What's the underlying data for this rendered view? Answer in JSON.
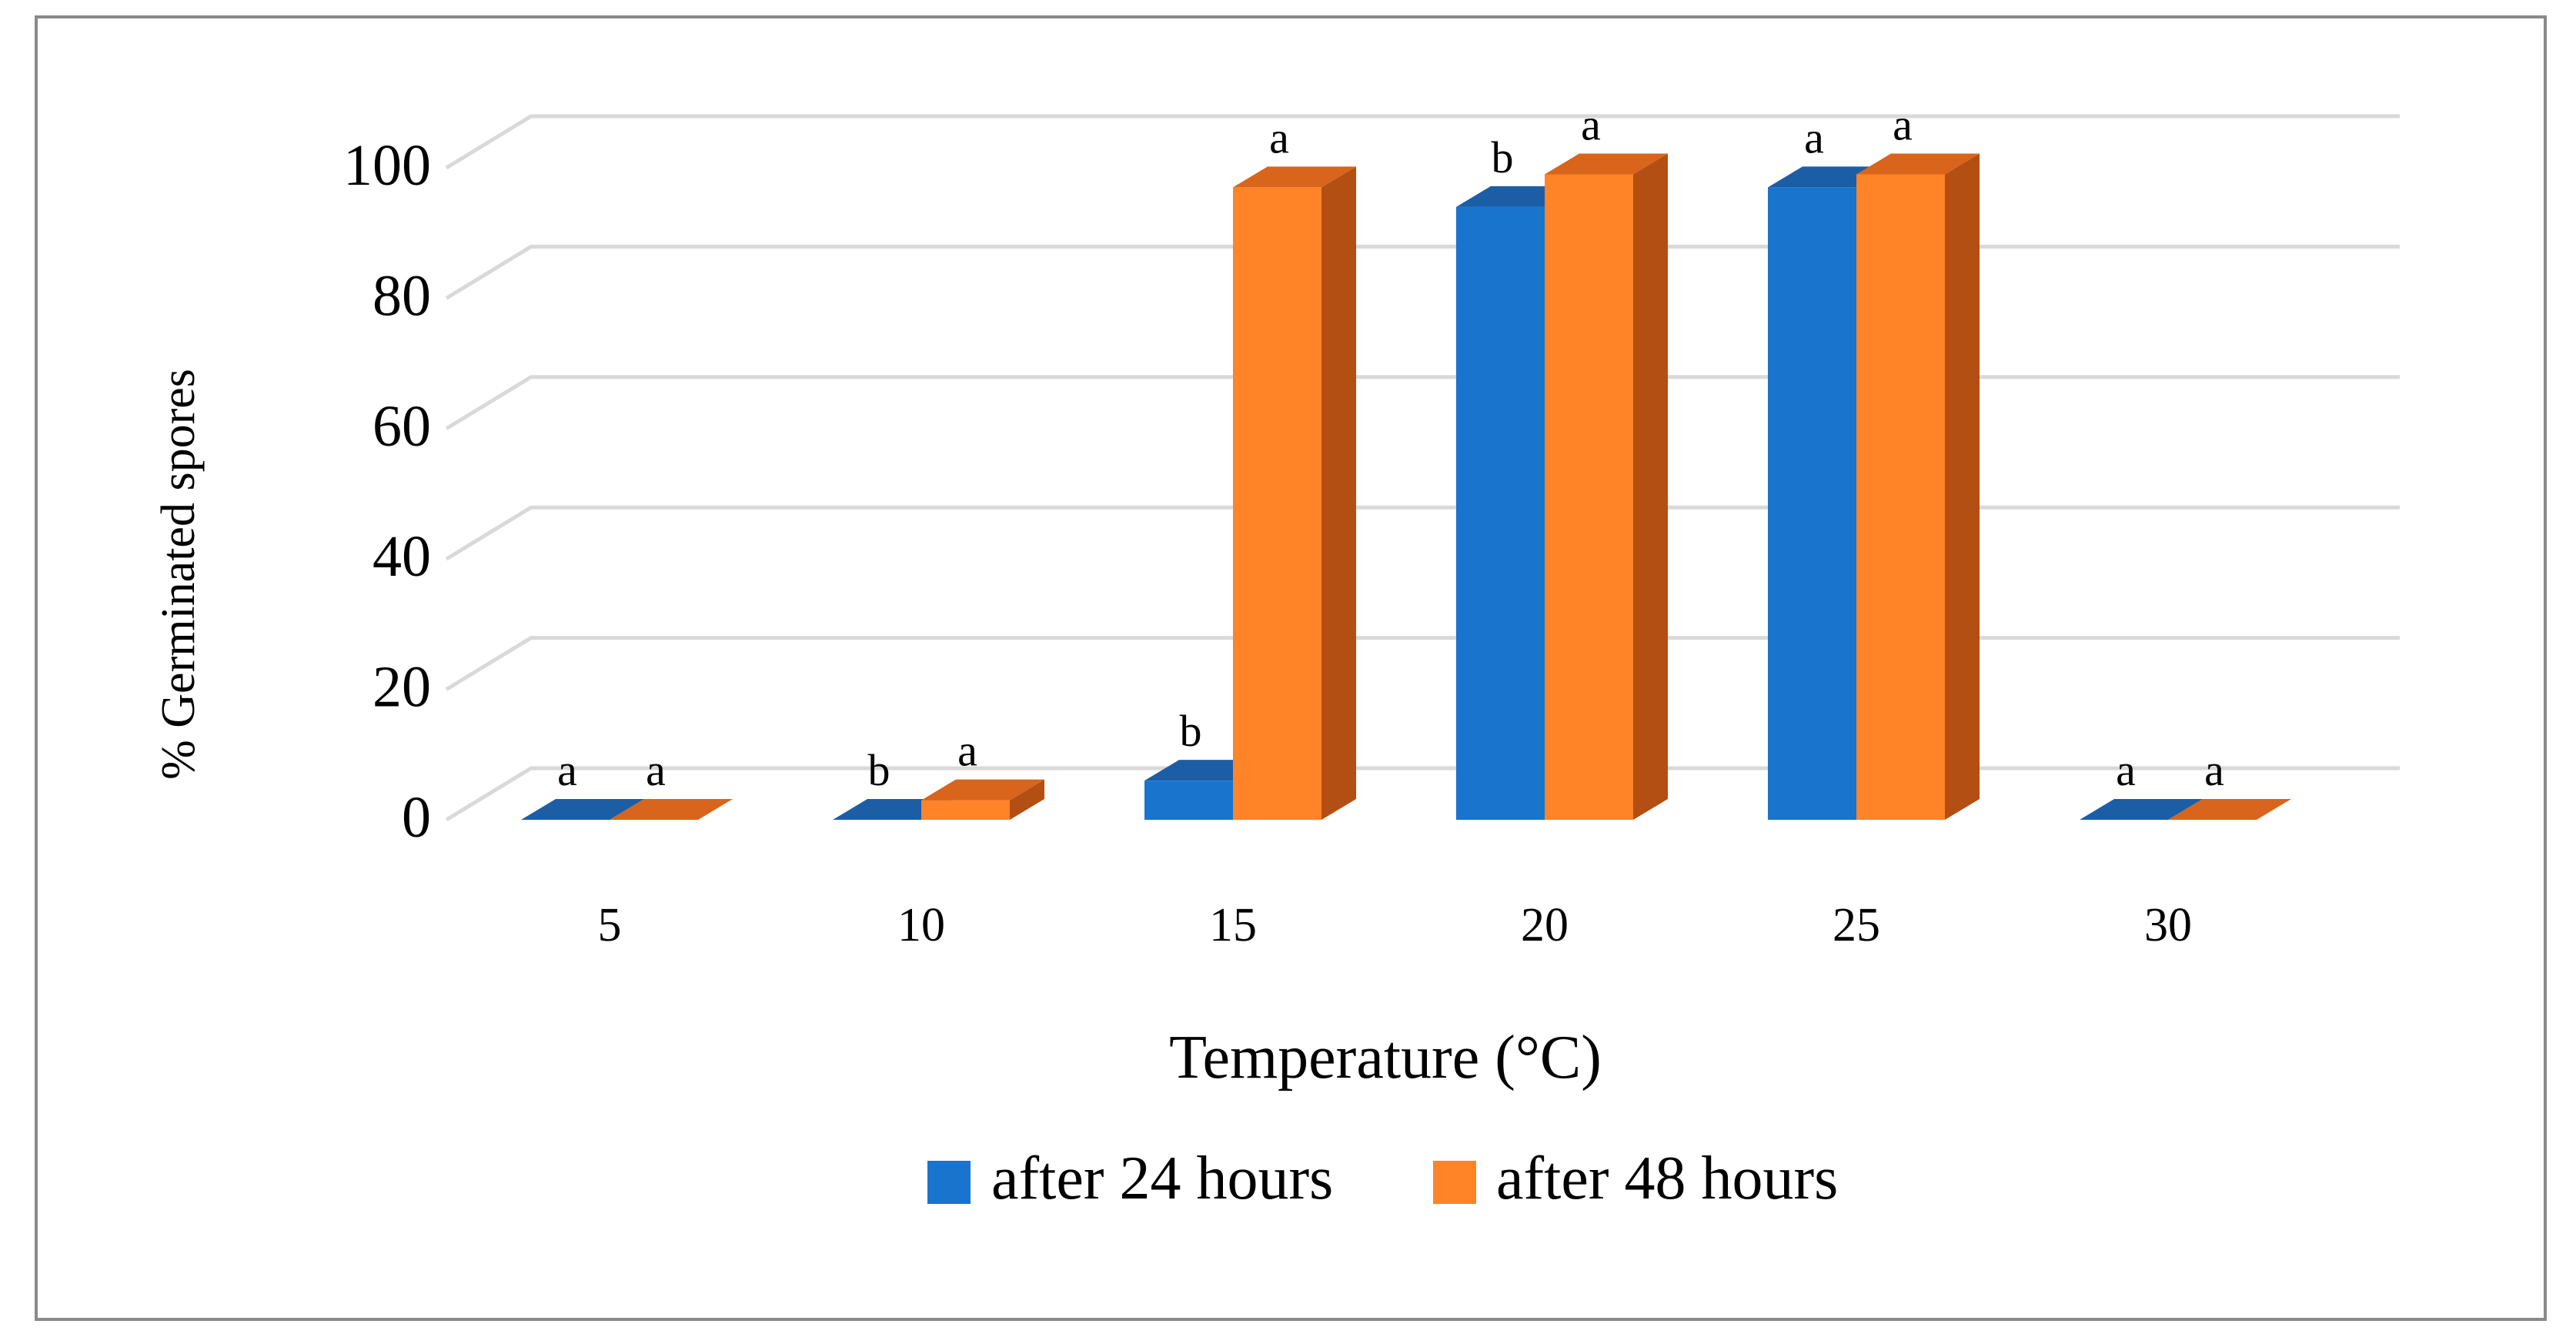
{
  "chart_data": {
    "type": "bar",
    "title": "",
    "xlabel": "Temperature (°C)",
    "ylabel": "% Germinated spores",
    "categories": [
      "5",
      "10",
      "15",
      "20",
      "25",
      "30"
    ],
    "ylim": [
      0,
      100
    ],
    "yticks": [
      0,
      20,
      40,
      60,
      80,
      100
    ],
    "grid": true,
    "legend_position": "bottom",
    "series": [
      {
        "name": "after 24 hours",
        "color": "#1874CD",
        "top_color": "#1B5EA6",
        "side_color": "#124E8C",
        "values": [
          0,
          0,
          6,
          94,
          97,
          0
        ],
        "letters": [
          "a",
          "b",
          "b",
          "b",
          "a",
          "a"
        ]
      },
      {
        "name": "after 48 hours",
        "color": "#FF8327",
        "top_color": "#D9641C",
        "side_color": "#B34F12",
        "values": [
          0,
          3,
          97,
          99,
          99,
          0
        ],
        "letters": [
          "a",
          "a",
          "a",
          "a",
          "a",
          "a"
        ]
      }
    ]
  }
}
